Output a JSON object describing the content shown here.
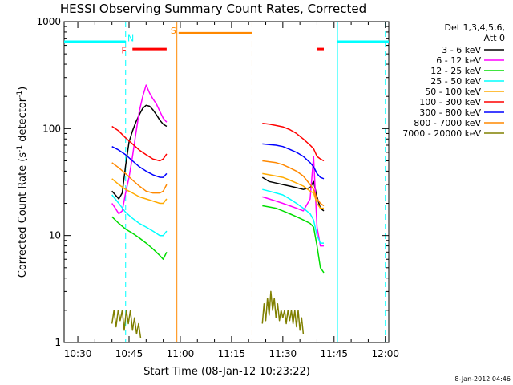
{
  "chart_data": {
    "type": "line",
    "title": "HESSI Observing Summary Count Rates, Corrected",
    "xlabel": "Start Time (08-Jan-12 10:23:22)",
    "ylabel_main": "Corrected Count Rate (s",
    "ylabel_sup1": "-1",
    "ylabel_mid": " detector",
    "ylabel_sup2": "-1",
    "ylabel_end": ")",
    "x_unit": "minutes after 10:00 UT",
    "xlim": [
      26,
      121
    ],
    "ylim": [
      1,
      1000
    ],
    "yscale": "log",
    "x_ticks": [
      {
        "value": 30,
        "label": "10:30"
      },
      {
        "value": 45,
        "label": "10:45"
      },
      {
        "value": 60,
        "label": "11:00"
      },
      {
        "value": 75,
        "label": "11:15"
      },
      {
        "value": 90,
        "label": "11:30"
      },
      {
        "value": 105,
        "label": "11:45"
      },
      {
        "value": 120,
        "label": "12:00"
      }
    ],
    "y_ticks": [
      {
        "value": 1,
        "label": "1"
      },
      {
        "value": 10,
        "label": "10"
      },
      {
        "value": 100,
        "label": "100"
      },
      {
        "value": 1000,
        "label": "1000"
      }
    ],
    "legend": {
      "position": "right",
      "header1": "Det 1,3,4,5,6,",
      "header2": "Att 0"
    },
    "series": [
      {
        "name": "3 - 6 keV",
        "color": "#000000",
        "segments": [
          [
            [
              40,
              26
            ],
            [
              41,
              24
            ],
            [
              42,
              22
            ],
            [
              43,
              25
            ],
            [
              44,
              45
            ],
            [
              45,
              75
            ],
            [
              46,
              95
            ],
            [
              47,
              115
            ],
            [
              48,
              135
            ],
            [
              49,
              155
            ],
            [
              50,
              165
            ],
            [
              51,
              162
            ],
            [
              52,
              150
            ],
            [
              53,
              135
            ],
            [
              54,
              120
            ],
            [
              55,
              110
            ],
            [
              56,
              105
            ]
          ],
          [
            [
              84,
              35
            ],
            [
              86,
              32
            ],
            [
              88,
              31
            ],
            [
              90,
              30
            ],
            [
              92,
              29
            ],
            [
              94,
              28
            ],
            [
              96,
              27
            ],
            [
              98,
              28
            ],
            [
              99,
              32
            ],
            [
              100,
              23
            ],
            [
              101,
              18
            ],
            [
              102,
              17
            ]
          ]
        ]
      },
      {
        "name": "6 - 12 keV",
        "color": "#ff00ff",
        "segments": [
          [
            [
              40,
              20
            ],
            [
              41,
              18
            ],
            [
              42,
              16
            ],
            [
              43,
              17
            ],
            [
              44,
              25
            ],
            [
              45,
              35
            ],
            [
              46,
              55
            ],
            [
              47,
              90
            ],
            [
              48,
              145
            ],
            [
              49,
              200
            ],
            [
              50,
              255
            ],
            [
              51,
              215
            ],
            [
              52,
              190
            ],
            [
              53,
              170
            ],
            [
              54,
              145
            ],
            [
              55,
              125
            ],
            [
              56,
              115
            ]
          ],
          [
            [
              84,
              23
            ],
            [
              86,
              22
            ],
            [
              88,
              21
            ],
            [
              90,
              20
            ],
            [
              92,
              19
            ],
            [
              94,
              18
            ],
            [
              96,
              17
            ],
            [
              98,
              22
            ],
            [
              99,
              55
            ],
            [
              100,
              12
            ],
            [
              101,
              8
            ],
            [
              102,
              8
            ]
          ]
        ]
      },
      {
        "name": "12 - 25 keV",
        "color": "#00dd00",
        "segments": [
          [
            [
              40,
              15
            ],
            [
              42,
              13
            ],
            [
              44,
              11.5
            ],
            [
              46,
              10.5
            ],
            [
              48,
              9.5
            ],
            [
              50,
              8.5
            ],
            [
              52,
              7.5
            ],
            [
              54,
              6.5
            ],
            [
              55,
              6
            ],
            [
              56,
              7
            ]
          ],
          [
            [
              84,
              19
            ],
            [
              86,
              18.5
            ],
            [
              88,
              18
            ],
            [
              90,
              17
            ],
            [
              92,
              16
            ],
            [
              94,
              15
            ],
            [
              96,
              14
            ],
            [
              98,
              13
            ],
            [
              99,
              12
            ],
            [
              100,
              8
            ],
            [
              101,
              5
            ],
            [
              102,
              4.5
            ]
          ]
        ]
      },
      {
        "name": "25 - 50 keV",
        "color": "#00ffff",
        "segments": [
          [
            [
              40,
              24
            ],
            [
              42,
              20
            ],
            [
              44,
              16.5
            ],
            [
              46,
              14.5
            ],
            [
              48,
              13
            ],
            [
              50,
              12
            ],
            [
              52,
              11
            ],
            [
              54,
              10
            ],
            [
              55,
              10
            ],
            [
              56,
              11
            ]
          ],
          [
            [
              84,
              27
            ],
            [
              86,
              26
            ],
            [
              88,
              25
            ],
            [
              90,
              24
            ],
            [
              92,
              22
            ],
            [
              94,
              20
            ],
            [
              96,
              18
            ],
            [
              98,
              16
            ],
            [
              99,
              14
            ],
            [
              100,
              10
            ],
            [
              101,
              8.5
            ],
            [
              102,
              8.5
            ]
          ]
        ]
      },
      {
        "name": "50 - 100 keV",
        "color": "#ffaa00",
        "segments": [
          [
            [
              40,
              34
            ],
            [
              42,
              30
            ],
            [
              44,
              27
            ],
            [
              46,
              25
            ],
            [
              48,
              23
            ],
            [
              50,
              22
            ],
            [
              52,
              21
            ],
            [
              54,
              20
            ],
            [
              55,
              20
            ],
            [
              56,
              22
            ]
          ],
          [
            [
              84,
              38
            ],
            [
              86,
              37
            ],
            [
              88,
              36
            ],
            [
              90,
              35
            ],
            [
              92,
              33
            ],
            [
              94,
              31
            ],
            [
              96,
              29
            ],
            [
              98,
              26
            ],
            [
              99,
              25
            ],
            [
              100,
              20
            ],
            [
              101,
              18
            ],
            [
              102,
              18
            ]
          ]
        ]
      },
      {
        "name": "100 - 300 keV",
        "color": "#ff0000",
        "segments": [
          [
            [
              40,
              105
            ],
            [
              42,
              95
            ],
            [
              44,
              82
            ],
            [
              46,
              72
            ],
            [
              48,
              63
            ],
            [
              50,
              57
            ],
            [
              52,
              52
            ],
            [
              54,
              50
            ],
            [
              55,
              52
            ],
            [
              56,
              58
            ]
          ],
          [
            [
              84,
              112
            ],
            [
              86,
              110
            ],
            [
              88,
              107
            ],
            [
              90,
              104
            ],
            [
              92,
              98
            ],
            [
              94,
              90
            ],
            [
              96,
              80
            ],
            [
              98,
              70
            ],
            [
              99,
              65
            ],
            [
              100,
              55
            ],
            [
              101,
              52
            ],
            [
              102,
              50
            ]
          ]
        ]
      },
      {
        "name": "300 - 800 keV",
        "color": "#0000ff",
        "segments": [
          [
            [
              40,
              68
            ],
            [
              42,
              63
            ],
            [
              44,
              57
            ],
            [
              46,
              50
            ],
            [
              48,
              44
            ],
            [
              50,
              40
            ],
            [
              52,
              37
            ],
            [
              54,
              35
            ],
            [
              55,
              35
            ],
            [
              56,
              38
            ]
          ],
          [
            [
              84,
              72
            ],
            [
              86,
              71
            ],
            [
              88,
              70
            ],
            [
              90,
              68
            ],
            [
              92,
              64
            ],
            [
              94,
              60
            ],
            [
              96,
              55
            ],
            [
              98,
              48
            ],
            [
              99,
              44
            ],
            [
              100,
              38
            ],
            [
              101,
              35
            ],
            [
              102,
              34
            ]
          ]
        ]
      },
      {
        "name": "800 - 7000 keV",
        "color": "#ff8800",
        "segments": [
          [
            [
              40,
              48
            ],
            [
              42,
              43
            ],
            [
              44,
              38
            ],
            [
              46,
              33
            ],
            [
              48,
              29
            ],
            [
              50,
              26
            ],
            [
              52,
              25
            ],
            [
              54,
              25
            ],
            [
              55,
              26
            ],
            [
              56,
              30
            ]
          ],
          [
            [
              84,
              50
            ],
            [
              86,
              49
            ],
            [
              88,
              48
            ],
            [
              90,
              46
            ],
            [
              92,
              43
            ],
            [
              94,
              40
            ],
            [
              96,
              36
            ],
            [
              98,
              30
            ],
            [
              99,
              27
            ],
            [
              100,
              22
            ],
            [
              101,
              20
            ],
            [
              102,
              19
            ]
          ]
        ]
      },
      {
        "name": "7000 - 20000 keV",
        "color": "#808000",
        "segments": [
          [
            [
              40,
              1.5
            ],
            [
              40.6,
              2
            ],
            [
              41.2,
              1.4
            ],
            [
              41.8,
              2
            ],
            [
              42.4,
              1.6
            ],
            [
              43,
              2
            ],
            [
              43.6,
              1.3
            ],
            [
              44.2,
              2
            ],
            [
              44.8,
              1.5
            ],
            [
              45.4,
              2
            ],
            [
              46,
              1.3
            ],
            [
              46.6,
              1.7
            ],
            [
              47.2,
              1.2
            ],
            [
              47.8,
              1.5
            ],
            [
              48.4,
              1.1
            ]
          ],
          [
            [
              84,
              1.5
            ],
            [
              84.5,
              2.3
            ],
            [
              85,
              1.6
            ],
            [
              85.5,
              2.6
            ],
            [
              86,
              1.8
            ],
            [
              86.5,
              3
            ],
            [
              87,
              2
            ],
            [
              87.5,
              2.6
            ],
            [
              88,
              1.7
            ],
            [
              88.5,
              2.3
            ],
            [
              89,
              1.6
            ],
            [
              89.5,
              2
            ],
            [
              90,
              1.7
            ],
            [
              90.5,
              2
            ],
            [
              91,
              1.5
            ],
            [
              91.5,
              2
            ],
            [
              92,
              1.6
            ],
            [
              92.5,
              2
            ],
            [
              93,
              1.5
            ],
            [
              93.5,
              2
            ],
            [
              94,
              1.4
            ],
            [
              94.5,
              2
            ],
            [
              95,
              1.3
            ],
            [
              95.5,
              1.7
            ],
            [
              96,
              1.2
            ]
          ]
        ]
      }
    ],
    "annotations": {
      "night_bars": [
        [
          26,
          44
        ],
        [
          106,
          121
        ]
      ],
      "night_bar_value": 650,
      "saa_bar": [
        59.5,
        81
      ],
      "saa_bar_value": 780,
      "flare_bars": [
        [
          46,
          56
        ],
        [
          100,
          102
        ]
      ],
      "flare_bar_value": 555,
      "labels": [
        {
          "text": "N",
          "x": 45.5,
          "value": 700,
          "color": "#00ffff"
        },
        {
          "text": "S",
          "x": 58,
          "value": 830,
          "color": "#ff8800"
        },
        {
          "text": "F",
          "x": 43.5,
          "value": 540,
          "color": "#ff0000"
        }
      ],
      "vlines": [
        {
          "x": 44,
          "color": "#00ffff",
          "style": "dashed"
        },
        {
          "x": 59,
          "color": "#ff8800",
          "style": "solid"
        },
        {
          "x": 81,
          "color": "#ff8800",
          "style": "dashed"
        },
        {
          "x": 106,
          "color": "#00ffff",
          "style": "solid"
        },
        {
          "x": 120,
          "color": "#00ffff",
          "style": "dashed"
        }
      ]
    }
  },
  "footer": {
    "timestamp": "8-Jan-2012 04:46"
  }
}
